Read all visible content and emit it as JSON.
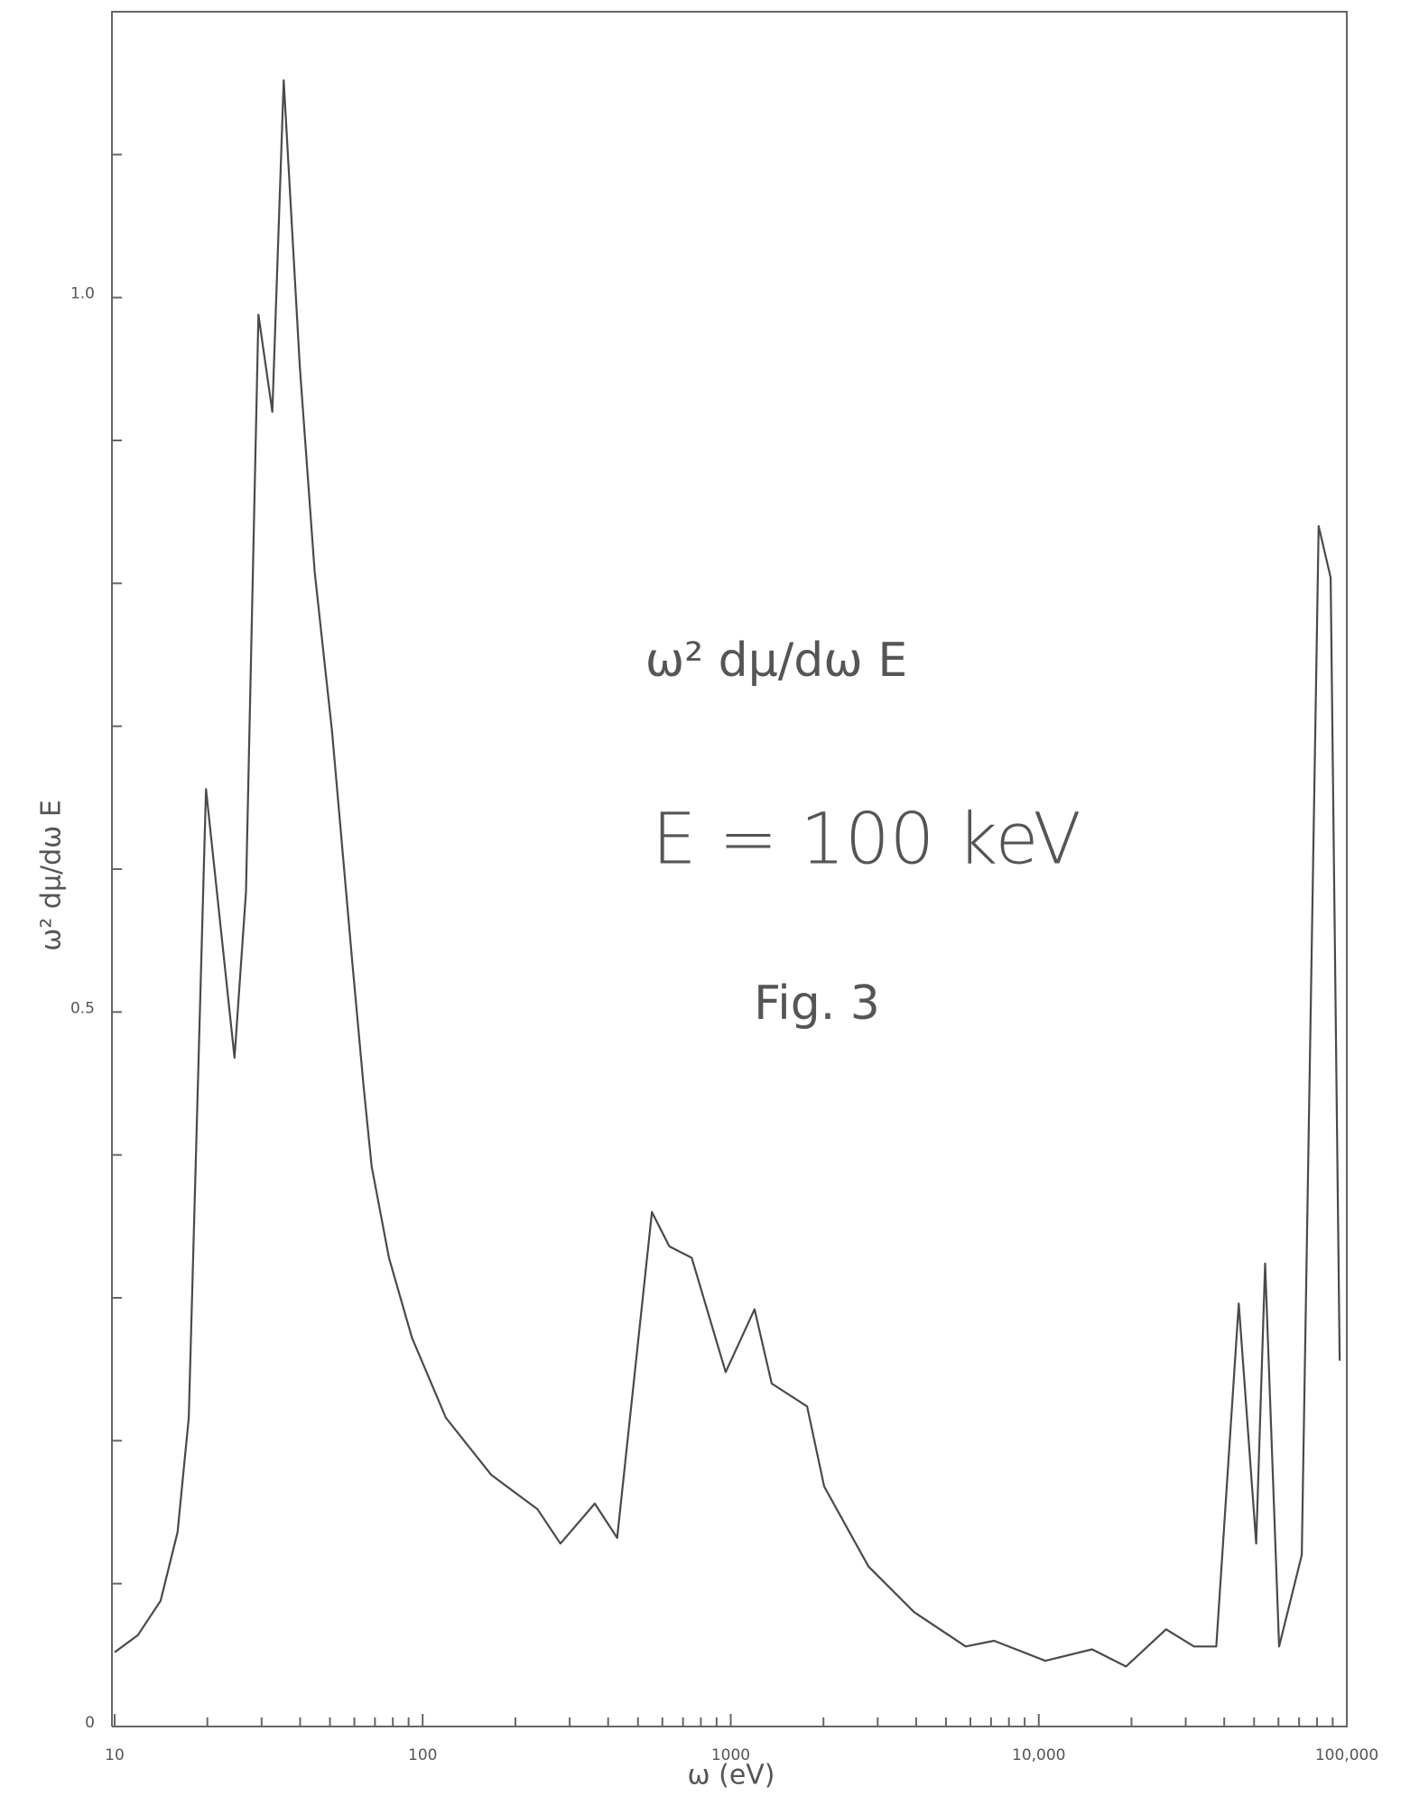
{
  "chart_data": {
    "type": "line",
    "xlabel": "ω (eV)",
    "ylabel": "ω² dμ/dω E",
    "annotations": [
      "ω² dμ/dω E",
      "E = 100 keV",
      "Fig. 3"
    ],
    "x_log": true,
    "xlim": [
      10,
      100000
    ],
    "ylim": [
      0,
      1.2
    ],
    "xticks": [
      10,
      100,
      1000,
      {
        "value": 10000,
        "label": "10,000"
      },
      {
        "value": 100000,
        "label": "100,000"
      }
    ],
    "xminorticks": [
      20,
      30,
      40,
      50,
      60,
      70,
      80,
      90,
      200,
      300,
      400,
      500,
      600,
      700,
      800,
      900,
      2000,
      3000,
      4000,
      5000,
      6000,
      7000,
      8000,
      9000,
      20000,
      30000,
      40000,
      50000,
      60000,
      70000,
      80000,
      90000
    ],
    "yticks": [
      0,
      0.5,
      {
        "value": 1,
        "label": "1.0"
      }
    ],
    "yminorticks": [
      0.1,
      0.2,
      0.3,
      0.4,
      0.6,
      0.7,
      0.8,
      0.9,
      1.1
    ],
    "grid": false,
    "series": [
      {
        "color": "#4a4a4a",
        "x": [
          10,
          11.9,
          14.1,
          16.0,
          17.4,
          19.8,
          24.5,
          26.7,
          29.3,
          32.5,
          35.4,
          39.9,
          44.6,
          50.8,
          59.0,
          64.3,
          68.3,
          77.7,
          92.3,
          119,
          167,
          236,
          280,
          362,
          428,
          555,
          632,
          747,
          963,
          1195,
          1358,
          1770,
          2010,
          2800,
          3940,
          5790,
          7160,
          10500,
          14900,
          19200,
          25900,
          31900,
          37700,
          44600,
          50800,
          54300,
          60300,
          71400,
          81000,
          88600,
          94800
        ],
        "values": [
          0.052,
          0.064,
          0.088,
          0.136,
          0.216,
          0.656,
          0.468,
          0.584,
          0.988,
          0.92,
          1.152,
          0.952,
          0.808,
          0.696,
          0.536,
          0.448,
          0.392,
          0.328,
          0.272,
          0.216,
          0.176,
          0.152,
          0.128,
          0.156,
          0.132,
          0.36,
          0.336,
          0.328,
          0.248,
          0.292,
          0.24,
          0.224,
          0.168,
          0.112,
          0.08,
          0.056,
          0.06,
          0.046,
          0.054,
          0.042,
          0.068,
          0.056,
          0.056,
          0.296,
          0.128,
          0.324,
          0.056,
          0.12,
          0.84,
          0.804,
          0.256
        ]
      }
    ]
  }
}
